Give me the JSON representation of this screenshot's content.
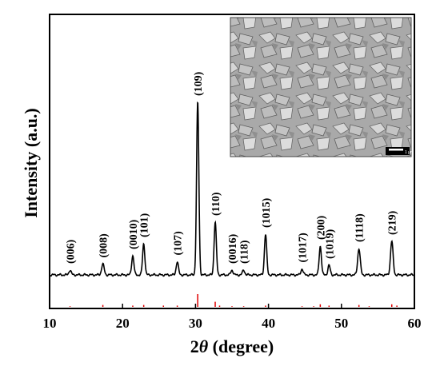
{
  "chart_data": {
    "type": "line",
    "xlabel": "2θ (degree)",
    "xlabel_prefix": "2",
    "xlabel_italic": "θ",
    "xlabel_suffix": " (degree)",
    "ylabel": "Intensity (a.u.)",
    "xlim": [
      10,
      60
    ],
    "xticks": [
      10,
      20,
      30,
      40,
      50,
      60
    ],
    "ylim": [
      0,
      1.0
    ],
    "grid": false,
    "series": [
      {
        "color": "#000000",
        "baseline": 0.02,
        "peaks": [
          {
            "x": 12.8,
            "y": 0.02,
            "w": 0.22
          },
          {
            "x": 17.3,
            "y": 0.045,
            "w": 0.25
          },
          {
            "x": 21.4,
            "y": 0.08,
            "w": 0.22
          },
          {
            "x": 22.9,
            "y": 0.13,
            "w": 0.22
          },
          {
            "x": 27.5,
            "y": 0.055,
            "w": 0.22
          },
          {
            "x": 30.3,
            "y": 0.72,
            "w": 0.22
          },
          {
            "x": 32.7,
            "y": 0.22,
            "w": 0.22
          },
          {
            "x": 35.0,
            "y": 0.02,
            "w": 0.22
          },
          {
            "x": 36.6,
            "y": 0.02,
            "w": 0.22
          },
          {
            "x": 39.6,
            "y": 0.17,
            "w": 0.22
          },
          {
            "x": 44.6,
            "y": 0.025,
            "w": 0.22
          },
          {
            "x": 47.1,
            "y": 0.12,
            "w": 0.22
          },
          {
            "x": 48.3,
            "y": 0.04,
            "w": 0.22
          },
          {
            "x": 52.4,
            "y": 0.11,
            "w": 0.25
          },
          {
            "x": 56.9,
            "y": 0.14,
            "w": 0.25
          }
        ]
      },
      {
        "color": "#e00000",
        "reference": true,
        "sticks": [
          {
            "x": 12.8,
            "y": 0.01
          },
          {
            "x": 17.3,
            "y": 0.03
          },
          {
            "x": 21.4,
            "y": 0.02
          },
          {
            "x": 22.9,
            "y": 0.03
          },
          {
            "x": 25.6,
            "y": 0.02
          },
          {
            "x": 27.5,
            "y": 0.02
          },
          {
            "x": 30.3,
            "y": 0.2
          },
          {
            "x": 32.7,
            "y": 0.08
          },
          {
            "x": 33.3,
            "y": 0.02
          },
          {
            "x": 35.0,
            "y": 0.01
          },
          {
            "x": 36.6,
            "y": 0.01
          },
          {
            "x": 39.6,
            "y": 0.02
          },
          {
            "x": 44.6,
            "y": 0.01
          },
          {
            "x": 46.2,
            "y": 0.01
          },
          {
            "x": 47.1,
            "y": 0.04
          },
          {
            "x": 48.3,
            "y": 0.02
          },
          {
            "x": 52.4,
            "y": 0.03
          },
          {
            "x": 53.8,
            "y": 0.01
          },
          {
            "x": 56.9,
            "y": 0.04
          },
          {
            "x": 57.6,
            "y": 0.02
          }
        ]
      }
    ],
    "annotations": [
      {
        "text": "(006)",
        "x": 12.8
      },
      {
        "text": "(008)",
        "x": 17.3
      },
      {
        "text": "(0010)",
        "x": 21.4
      },
      {
        "text": "(101)",
        "x": 22.9
      },
      {
        "text": "(107)",
        "x": 27.5
      },
      {
        "text": "(109)",
        "x": 30.3
      },
      {
        "text": "(110)",
        "x": 32.7
      },
      {
        "text": "(0016)",
        "x": 35.0
      },
      {
        "text": "(118)",
        "x": 36.6
      },
      {
        "text": "(1015)",
        "x": 39.6
      },
      {
        "text": "(1017)",
        "x": 44.6
      },
      {
        "text": "(200)",
        "x": 47.1
      },
      {
        "text": "(1019)",
        "x": 48.3
      },
      {
        "text": "(1118)",
        "x": 52.4
      },
      {
        "text": "(219)",
        "x": 56.9
      }
    ]
  },
  "inset": {
    "scale_bar_label": "1 μm",
    "background": "#a8a8a8"
  }
}
